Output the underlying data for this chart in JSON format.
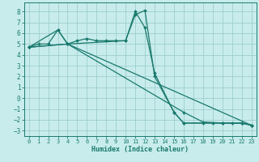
{
  "xlabel": "Humidex (Indice chaleur)",
  "bg_color": "#c8ecec",
  "grid_color": "#9ecece",
  "line_color": "#1a7a6e",
  "xlim": [
    -0.5,
    23.5
  ],
  "ylim": [
    -3.5,
    8.8
  ],
  "xticks": [
    0,
    1,
    2,
    3,
    4,
    5,
    6,
    7,
    8,
    9,
    10,
    11,
    12,
    13,
    14,
    15,
    16,
    17,
    18,
    19,
    20,
    21,
    22,
    23
  ],
  "yticks": [
    -3,
    -2,
    -1,
    0,
    1,
    2,
    3,
    4,
    5,
    6,
    7,
    8
  ],
  "series1_x": [
    0,
    1,
    2,
    3,
    4,
    5,
    6,
    7,
    8,
    9,
    10,
    11,
    12,
    13,
    15,
    16,
    18,
    19,
    20,
    21,
    22,
    23
  ],
  "series1_y": [
    4.7,
    5.0,
    5.0,
    6.3,
    5.0,
    5.3,
    5.5,
    5.3,
    5.3,
    5.3,
    5.3,
    8.0,
    6.5,
    2.3,
    -1.3,
    -2.3,
    -2.3,
    -2.3,
    -2.3,
    -2.3,
    -2.3,
    -2.5
  ],
  "series2_x": [
    0,
    3,
    4,
    10,
    11,
    12,
    13,
    15,
    16,
    22,
    23
  ],
  "series2_y": [
    4.7,
    6.3,
    5.0,
    5.3,
    7.7,
    8.1,
    2.0,
    -1.3,
    -2.3,
    -2.3,
    -2.5
  ],
  "series3_x": [
    0,
    4,
    16,
    18,
    20,
    22,
    23
  ],
  "series3_y": [
    4.7,
    5.0,
    -1.3,
    -2.2,
    -2.3,
    -2.3,
    -2.5
  ],
  "series4_x": [
    0,
    4,
    23
  ],
  "series4_y": [
    4.7,
    5.0,
    -2.5
  ]
}
